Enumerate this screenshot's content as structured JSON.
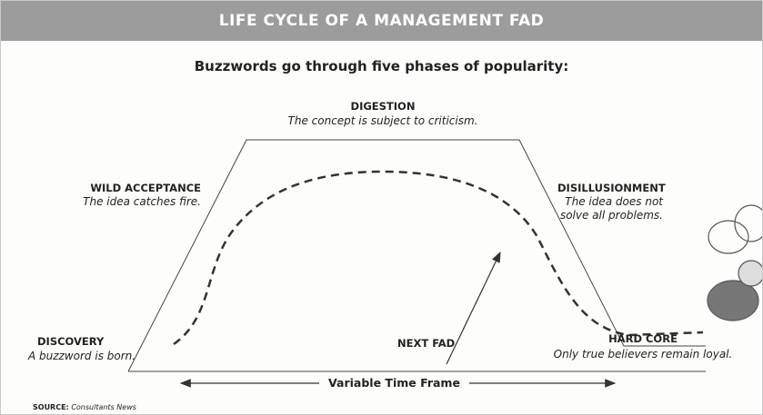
{
  "header": {
    "title": "LIFE CYCLE OF A MANAGEMENT FAD"
  },
  "subtitle": "Buzzwords go through five phases of popularity:",
  "phases": [
    {
      "name": "DISCOVERY",
      "description": "A buzzword is born."
    },
    {
      "name": "WILD ACCEPTANCE",
      "description": "The idea catches fire."
    },
    {
      "name": "DIGESTION",
      "description": "The concept is subject to criticism."
    },
    {
      "name": "DISILLUSIONMENT",
      "description": "The idea does not solve all problems."
    },
    {
      "name": "HARD CORE",
      "description": "Only true believers remain loyal."
    }
  ],
  "next_fad": "NEXT FAD",
  "time_frame": "Variable Time Frame",
  "source": {
    "label": "SOURCE:",
    "name": "Consultants News"
  }
}
